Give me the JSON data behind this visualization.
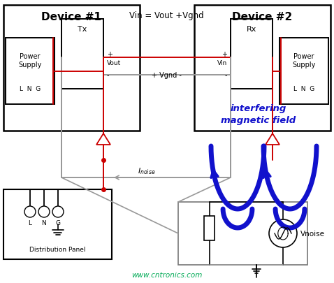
{
  "bg_color": "#ffffff",
  "device1_label": "Device #1",
  "device2_label": "Device #2",
  "tx_label": "Tx",
  "rx_label": "Rx",
  "ps1_label": "Power\nSupply",
  "ps1_lng": "L  N  G",
  "ps2_label": "Power\nSupply",
  "ps2_lng": "L  N  G",
  "dp_label": "Distribution Panel",
  "dp_lng": "L  N  G",
  "vnoise_label": "Vnoise",
  "vin_label": "Vin = Vout +Vgnd",
  "vout_label": "Vout",
  "vin2_label": "Vin",
  "vgnd_label": "+ Vgnd -",
  "inoise_label": "$I_{noise}$",
  "interfering_line1": "interfering",
  "interfering_line2": "magnetic field",
  "watermark": "www.cntronics.com",
  "colors": {
    "box": "#000000",
    "red_wire": "#cc0000",
    "gray_wire": "#999999",
    "black_wire": "#000000",
    "blue_coil": "#1111cc",
    "blue_text": "#1111cc",
    "watermark": "#00aa55"
  }
}
